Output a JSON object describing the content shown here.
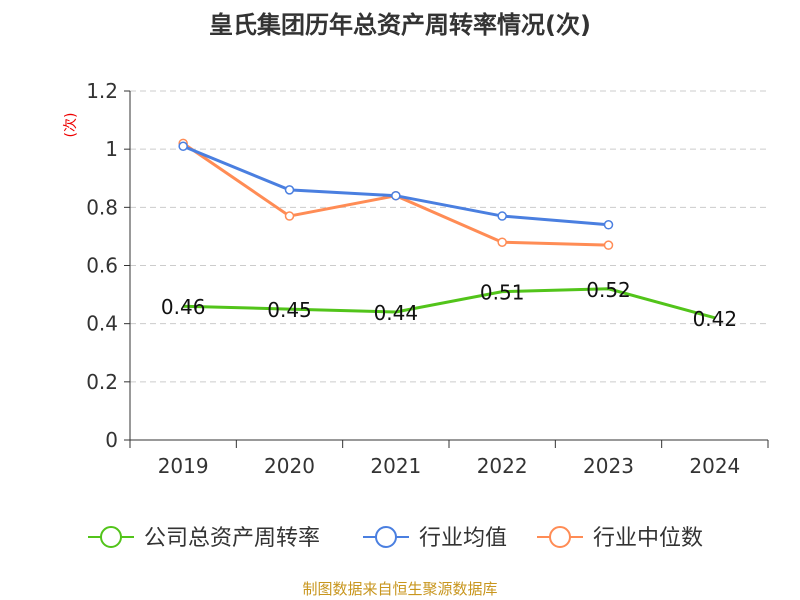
{
  "chart_data": {
    "type": "line",
    "title": "皇氏集团历年总资产周转率情况(次)",
    "ylabel": "(次)",
    "ylim": [
      0,
      1.2
    ],
    "yticks": [
      "0",
      "0.2",
      "0.4",
      "0.6",
      "0.8",
      "1",
      "1.2"
    ],
    "ytick_values": [
      0,
      0.2,
      0.4,
      0.6,
      0.8,
      1,
      1.2
    ],
    "categories": [
      "2019",
      "2020",
      "2021",
      "2022",
      "2023",
      "2024"
    ],
    "grid": true,
    "legend_position": "bottom",
    "series": [
      {
        "name": "公司总资产周转率",
        "color": "#52c41a",
        "values": [
          0.46,
          0.45,
          0.44,
          0.51,
          0.52,
          0.42
        ],
        "labels": [
          "0.46",
          "0.45",
          "0.44",
          "0.51",
          "0.52",
          "0.42"
        ]
      },
      {
        "name": "行业均值",
        "color": "#4a7fe0",
        "values": [
          1.01,
          0.86,
          0.84,
          0.77,
          0.74,
          null
        ]
      },
      {
        "name": "行业中位数",
        "color": "#ff8c55",
        "values": [
          1.02,
          0.77,
          0.84,
          0.68,
          0.67,
          null
        ]
      }
    ],
    "source": "制图数据来自恒生聚源数据库"
  }
}
